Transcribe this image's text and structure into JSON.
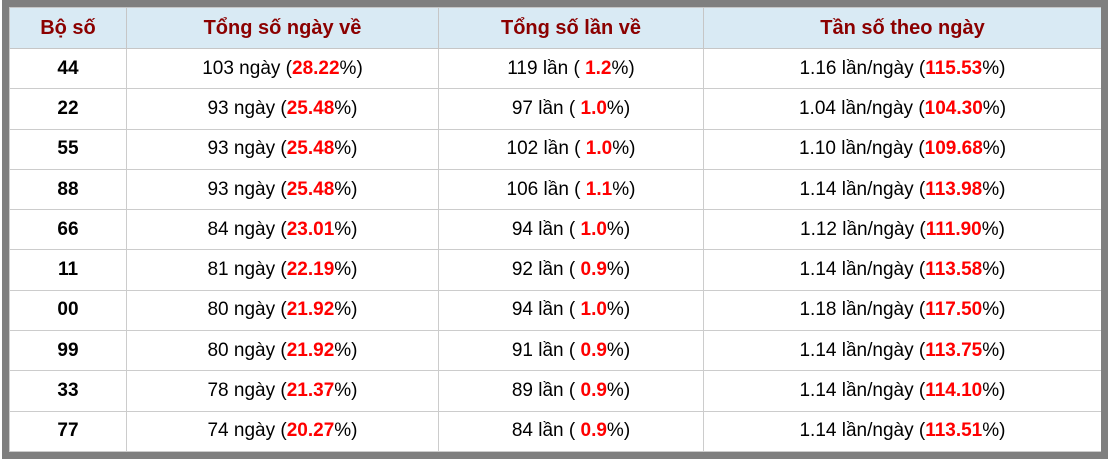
{
  "colors": {
    "frame": "#7f7f7f",
    "header_bg": "#d9eaf4",
    "header_text": "#8b0000",
    "highlight": "#ff0000",
    "grid": "#cccccc",
    "body_text": "#000000"
  },
  "table": {
    "columns": [
      {
        "label": "Bộ số"
      },
      {
        "label": "Tổng số ngày về"
      },
      {
        "label": "Tổng số lần về"
      },
      {
        "label": "Tần số theo ngày"
      }
    ],
    "rows": [
      {
        "pair": "44",
        "days_prefix": "103 ngày (",
        "days_value": "28.22",
        "days_suffix": "%)",
        "times_prefix": "119 lần ( ",
        "times_value": "1.2",
        "times_suffix": "%)",
        "freq_prefix": "1.16 lần/ngày (",
        "freq_value": "115.53",
        "freq_suffix": "%)"
      },
      {
        "pair": "22",
        "days_prefix": "93 ngày (",
        "days_value": "25.48",
        "days_suffix": "%)",
        "times_prefix": "97 lần ( ",
        "times_value": "1.0",
        "times_suffix": "%)",
        "freq_prefix": "1.04 lần/ngày (",
        "freq_value": "104.30",
        "freq_suffix": "%)"
      },
      {
        "pair": "55",
        "days_prefix": "93 ngày (",
        "days_value": "25.48",
        "days_suffix": "%)",
        "times_prefix": "102 lần ( ",
        "times_value": "1.0",
        "times_suffix": "%)",
        "freq_prefix": "1.10 lần/ngày (",
        "freq_value": "109.68",
        "freq_suffix": "%)"
      },
      {
        "pair": "88",
        "days_prefix": "93 ngày (",
        "days_value": "25.48",
        "days_suffix": "%)",
        "times_prefix": "106 lần ( ",
        "times_value": "1.1",
        "times_suffix": "%)",
        "freq_prefix": "1.14 lần/ngày (",
        "freq_value": "113.98",
        "freq_suffix": "%)"
      },
      {
        "pair": "66",
        "days_prefix": "84 ngày (",
        "days_value": "23.01",
        "days_suffix": "%)",
        "times_prefix": "94 lần ( ",
        "times_value": "1.0",
        "times_suffix": "%)",
        "freq_prefix": "1.12 lần/ngày (",
        "freq_value": "111.90",
        "freq_suffix": "%)"
      },
      {
        "pair": "11",
        "days_prefix": "81 ngày (",
        "days_value": "22.19",
        "days_suffix": "%)",
        "times_prefix": "92 lần ( ",
        "times_value": "0.9",
        "times_suffix": "%)",
        "freq_prefix": "1.14 lần/ngày (",
        "freq_value": "113.58",
        "freq_suffix": "%)"
      },
      {
        "pair": "00",
        "days_prefix": "80 ngày (",
        "days_value": "21.92",
        "days_suffix": "%)",
        "times_prefix": "94 lần ( ",
        "times_value": "1.0",
        "times_suffix": "%)",
        "freq_prefix": "1.18 lần/ngày (",
        "freq_value": "117.50",
        "freq_suffix": "%)"
      },
      {
        "pair": "99",
        "days_prefix": "80 ngày (",
        "days_value": "21.92",
        "days_suffix": "%)",
        "times_prefix": "91 lần ( ",
        "times_value": "0.9",
        "times_suffix": "%)",
        "freq_prefix": "1.14 lần/ngày (",
        "freq_value": "113.75",
        "freq_suffix": "%)"
      },
      {
        "pair": "33",
        "days_prefix": "78 ngày (",
        "days_value": "21.37",
        "days_suffix": "%)",
        "times_prefix": "89 lần ( ",
        "times_value": "0.9",
        "times_suffix": "%)",
        "freq_prefix": "1.14 lần/ngày (",
        "freq_value": "114.10",
        "freq_suffix": "%)"
      },
      {
        "pair": "77",
        "days_prefix": "74 ngày (",
        "days_value": "20.27",
        "days_suffix": "%)",
        "times_prefix": "84 lần ( ",
        "times_value": "0.9",
        "times_suffix": "%)",
        "freq_prefix": "1.14 lần/ngày (",
        "freq_value": "113.51",
        "freq_suffix": "%)"
      }
    ]
  }
}
